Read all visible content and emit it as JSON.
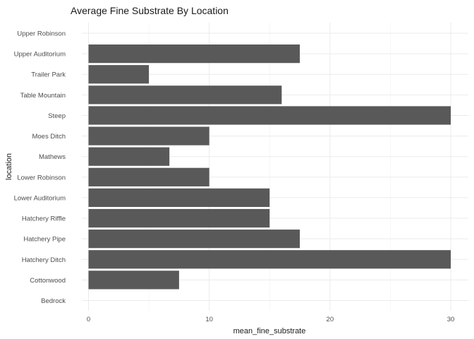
{
  "chart_data": {
    "type": "bar",
    "orientation": "horizontal",
    "title": "Average Fine Substrate By Location",
    "xlabel": "mean_fine_substrate",
    "ylabel": "location",
    "xlim": [
      0,
      31
    ],
    "xticks": [
      0,
      10,
      20,
      30
    ],
    "grid": true,
    "bar_color": "#595959",
    "categories": [
      "Bedrock",
      "Cottonwood",
      "Hatchery Ditch",
      "Hatchery Pipe",
      "Hatchery Riffle",
      "Lower Auditorium",
      "Lower Robinson",
      "Mathews",
      "Moes Ditch",
      "Steep",
      "Table Mountain",
      "Trailer Park",
      "Upper Auditorium",
      "Upper Robinson"
    ],
    "values": [
      0,
      7.5,
      30,
      17.5,
      15,
      15,
      10,
      6.7,
      10,
      30,
      16,
      5,
      17.5,
      0
    ]
  }
}
